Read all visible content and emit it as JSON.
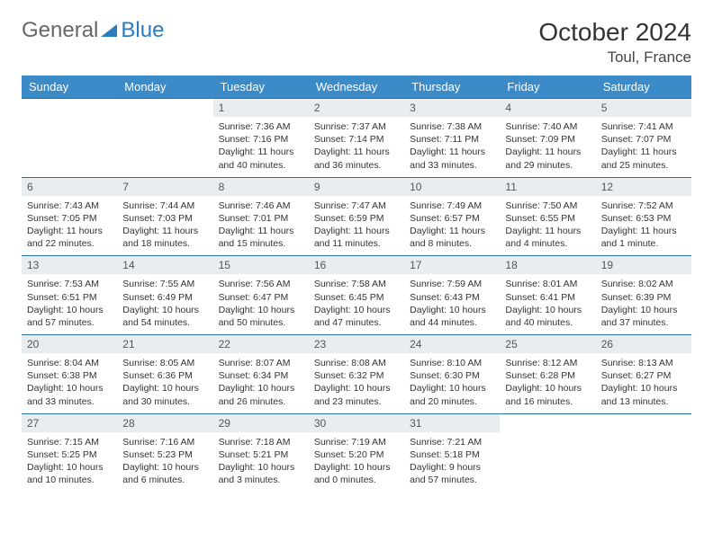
{
  "brand": {
    "part1": "General",
    "part2": "Blue"
  },
  "title": "October 2024",
  "location": "Toul, France",
  "colors": {
    "header_bg": "#3b8bc9",
    "header_text": "#ffffff",
    "daynum_bg": "#e9edf0",
    "border": "#2b6fa8",
    "text": "#333333"
  },
  "day_headers": [
    "Sunday",
    "Monday",
    "Tuesday",
    "Wednesday",
    "Thursday",
    "Friday",
    "Saturday"
  ],
  "weeks": [
    [
      null,
      null,
      {
        "n": "1",
        "sr": "Sunrise: 7:36 AM",
        "ss": "Sunset: 7:16 PM",
        "dl": "Daylight: 11 hours and 40 minutes."
      },
      {
        "n": "2",
        "sr": "Sunrise: 7:37 AM",
        "ss": "Sunset: 7:14 PM",
        "dl": "Daylight: 11 hours and 36 minutes."
      },
      {
        "n": "3",
        "sr": "Sunrise: 7:38 AM",
        "ss": "Sunset: 7:11 PM",
        "dl": "Daylight: 11 hours and 33 minutes."
      },
      {
        "n": "4",
        "sr": "Sunrise: 7:40 AM",
        "ss": "Sunset: 7:09 PM",
        "dl": "Daylight: 11 hours and 29 minutes."
      },
      {
        "n": "5",
        "sr": "Sunrise: 7:41 AM",
        "ss": "Sunset: 7:07 PM",
        "dl": "Daylight: 11 hours and 25 minutes."
      }
    ],
    [
      {
        "n": "6",
        "sr": "Sunrise: 7:43 AM",
        "ss": "Sunset: 7:05 PM",
        "dl": "Daylight: 11 hours and 22 minutes."
      },
      {
        "n": "7",
        "sr": "Sunrise: 7:44 AM",
        "ss": "Sunset: 7:03 PM",
        "dl": "Daylight: 11 hours and 18 minutes."
      },
      {
        "n": "8",
        "sr": "Sunrise: 7:46 AM",
        "ss": "Sunset: 7:01 PM",
        "dl": "Daylight: 11 hours and 15 minutes."
      },
      {
        "n": "9",
        "sr": "Sunrise: 7:47 AM",
        "ss": "Sunset: 6:59 PM",
        "dl": "Daylight: 11 hours and 11 minutes."
      },
      {
        "n": "10",
        "sr": "Sunrise: 7:49 AM",
        "ss": "Sunset: 6:57 PM",
        "dl": "Daylight: 11 hours and 8 minutes."
      },
      {
        "n": "11",
        "sr": "Sunrise: 7:50 AM",
        "ss": "Sunset: 6:55 PM",
        "dl": "Daylight: 11 hours and 4 minutes."
      },
      {
        "n": "12",
        "sr": "Sunrise: 7:52 AM",
        "ss": "Sunset: 6:53 PM",
        "dl": "Daylight: 11 hours and 1 minute."
      }
    ],
    [
      {
        "n": "13",
        "sr": "Sunrise: 7:53 AM",
        "ss": "Sunset: 6:51 PM",
        "dl": "Daylight: 10 hours and 57 minutes."
      },
      {
        "n": "14",
        "sr": "Sunrise: 7:55 AM",
        "ss": "Sunset: 6:49 PM",
        "dl": "Daylight: 10 hours and 54 minutes."
      },
      {
        "n": "15",
        "sr": "Sunrise: 7:56 AM",
        "ss": "Sunset: 6:47 PM",
        "dl": "Daylight: 10 hours and 50 minutes."
      },
      {
        "n": "16",
        "sr": "Sunrise: 7:58 AM",
        "ss": "Sunset: 6:45 PM",
        "dl": "Daylight: 10 hours and 47 minutes."
      },
      {
        "n": "17",
        "sr": "Sunrise: 7:59 AM",
        "ss": "Sunset: 6:43 PM",
        "dl": "Daylight: 10 hours and 44 minutes."
      },
      {
        "n": "18",
        "sr": "Sunrise: 8:01 AM",
        "ss": "Sunset: 6:41 PM",
        "dl": "Daylight: 10 hours and 40 minutes."
      },
      {
        "n": "19",
        "sr": "Sunrise: 8:02 AM",
        "ss": "Sunset: 6:39 PM",
        "dl": "Daylight: 10 hours and 37 minutes."
      }
    ],
    [
      {
        "n": "20",
        "sr": "Sunrise: 8:04 AM",
        "ss": "Sunset: 6:38 PM",
        "dl": "Daylight: 10 hours and 33 minutes."
      },
      {
        "n": "21",
        "sr": "Sunrise: 8:05 AM",
        "ss": "Sunset: 6:36 PM",
        "dl": "Daylight: 10 hours and 30 minutes."
      },
      {
        "n": "22",
        "sr": "Sunrise: 8:07 AM",
        "ss": "Sunset: 6:34 PM",
        "dl": "Daylight: 10 hours and 26 minutes."
      },
      {
        "n": "23",
        "sr": "Sunrise: 8:08 AM",
        "ss": "Sunset: 6:32 PM",
        "dl": "Daylight: 10 hours and 23 minutes."
      },
      {
        "n": "24",
        "sr": "Sunrise: 8:10 AM",
        "ss": "Sunset: 6:30 PM",
        "dl": "Daylight: 10 hours and 20 minutes."
      },
      {
        "n": "25",
        "sr": "Sunrise: 8:12 AM",
        "ss": "Sunset: 6:28 PM",
        "dl": "Daylight: 10 hours and 16 minutes."
      },
      {
        "n": "26",
        "sr": "Sunrise: 8:13 AM",
        "ss": "Sunset: 6:27 PM",
        "dl": "Daylight: 10 hours and 13 minutes."
      }
    ],
    [
      {
        "n": "27",
        "sr": "Sunrise: 7:15 AM",
        "ss": "Sunset: 5:25 PM",
        "dl": "Daylight: 10 hours and 10 minutes."
      },
      {
        "n": "28",
        "sr": "Sunrise: 7:16 AM",
        "ss": "Sunset: 5:23 PM",
        "dl": "Daylight: 10 hours and 6 minutes."
      },
      {
        "n": "29",
        "sr": "Sunrise: 7:18 AM",
        "ss": "Sunset: 5:21 PM",
        "dl": "Daylight: 10 hours and 3 minutes."
      },
      {
        "n": "30",
        "sr": "Sunrise: 7:19 AM",
        "ss": "Sunset: 5:20 PM",
        "dl": "Daylight: 10 hours and 0 minutes."
      },
      {
        "n": "31",
        "sr": "Sunrise: 7:21 AM",
        "ss": "Sunset: 5:18 PM",
        "dl": "Daylight: 9 hours and 57 minutes."
      },
      null,
      null
    ]
  ]
}
